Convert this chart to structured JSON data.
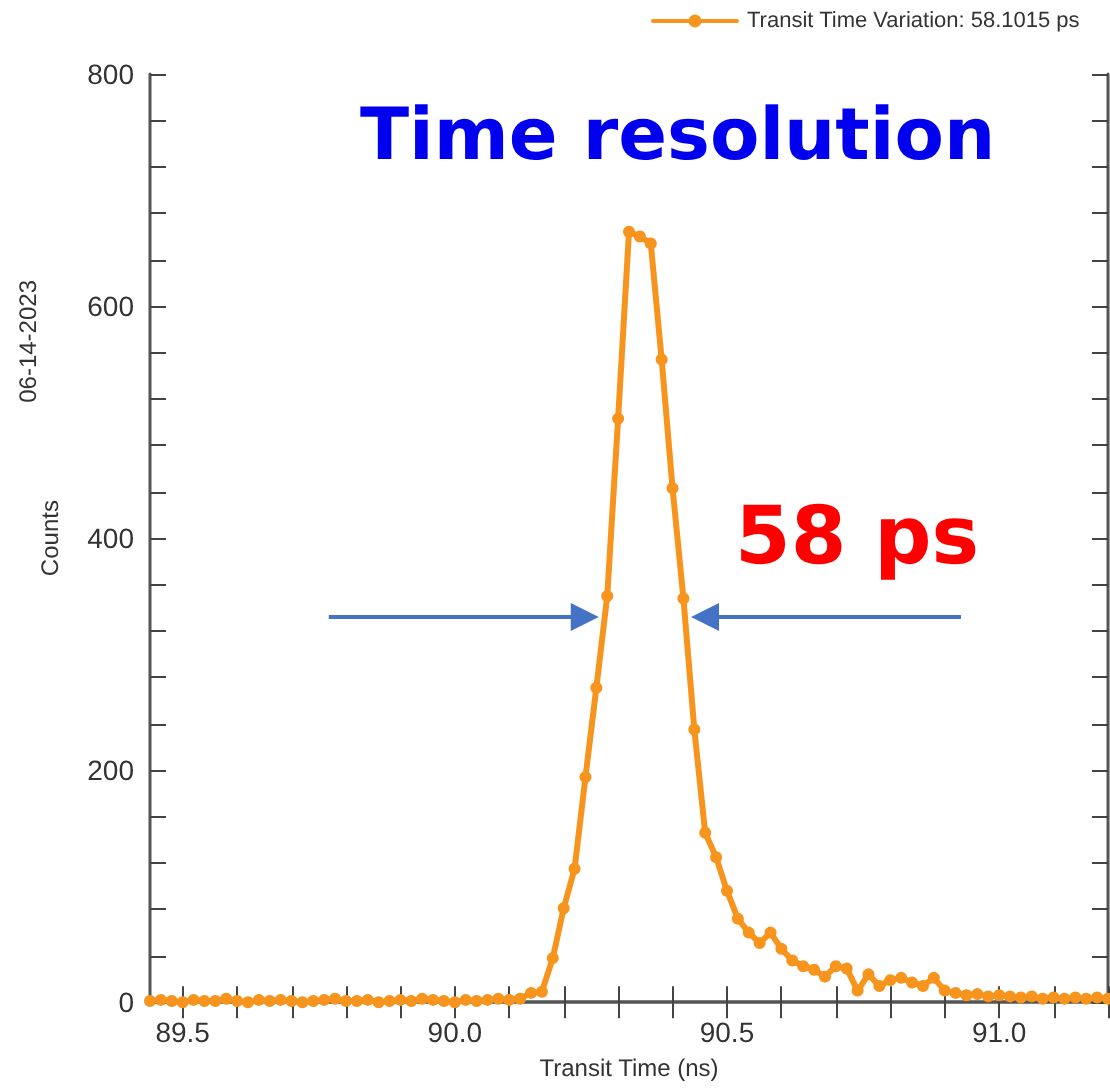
{
  "chart_data": {
    "type": "line",
    "title": "Time resolution",
    "xlabel": "Transit Time (ns)",
    "ylabel": "Counts",
    "annotations": [
      "06-14-2023",
      "58 ps"
    ],
    "x": [
      89.44,
      89.46,
      89.48,
      89.5,
      89.52,
      89.54,
      89.56,
      89.58,
      89.6,
      89.62,
      89.64,
      89.66,
      89.68,
      89.7,
      89.72,
      89.74,
      89.76,
      89.78,
      89.8,
      89.82,
      89.84,
      89.86,
      89.88,
      89.9,
      89.92,
      89.94,
      89.96,
      89.98,
      90.0,
      90.02,
      90.04,
      90.06,
      90.08,
      90.1,
      90.12,
      90.14,
      90.16,
      90.18,
      90.2,
      90.22,
      90.24,
      90.26,
      90.28,
      90.3,
      90.32,
      90.34,
      90.36,
      90.38,
      90.4,
      90.42,
      90.44,
      90.46,
      90.48,
      90.5,
      90.52,
      90.54,
      90.56,
      90.58,
      90.6,
      90.62,
      90.64,
      90.66,
      90.68,
      90.7,
      90.72,
      90.74,
      90.76,
      90.78,
      90.8,
      90.82,
      90.84,
      90.86,
      90.88,
      90.9,
      90.92,
      90.94,
      90.96,
      90.98,
      91.0,
      91.02,
      91.04,
      91.06,
      91.08,
      91.1,
      91.12,
      91.14,
      91.16,
      91.18,
      91.2
    ],
    "series": [
      {
        "name": "Transit Time Variation: 58.1015 ps",
        "color": "#f7941d",
        "values": [
          1,
          2,
          1,
          0,
          2,
          1,
          1,
          3,
          1,
          0,
          2,
          1,
          2,
          1,
          0,
          1,
          2,
          3,
          1,
          1,
          2,
          0,
          1,
          2,
          1,
          3,
          2,
          1,
          0,
          2,
          1,
          2,
          3,
          2,
          3,
          8,
          9,
          38,
          81,
          115,
          194,
          271,
          350,
          503,
          664,
          660,
          654,
          554,
          443,
          348,
          235,
          146,
          125,
          96,
          72,
          60,
          51,
          60,
          46,
          36,
          31,
          28,
          22,
          31,
          29,
          10,
          24,
          14,
          19,
          21,
          17,
          14,
          21,
          10,
          8,
          6,
          7,
          5,
          6,
          5,
          4,
          5,
          3,
          4,
          3,
          4,
          3,
          4,
          3
        ]
      }
    ],
    "xlim": [
      89.44,
      91.2
    ],
    "xticks": [
      {
        "value": 89.5,
        "label": "89.5"
      },
      {
        "value": 90,
        "label": "90.0"
      },
      {
        "value": 90.5,
        "label": "90.5"
      },
      {
        "value": 91,
        "label": "91.0"
      }
    ],
    "ylim": [
      0,
      800
    ],
    "yticks": [
      0,
      200,
      400,
      600,
      800
    ],
    "grid": false,
    "legend": "top right",
    "marker": "circle",
    "line_style": "solid"
  }
}
